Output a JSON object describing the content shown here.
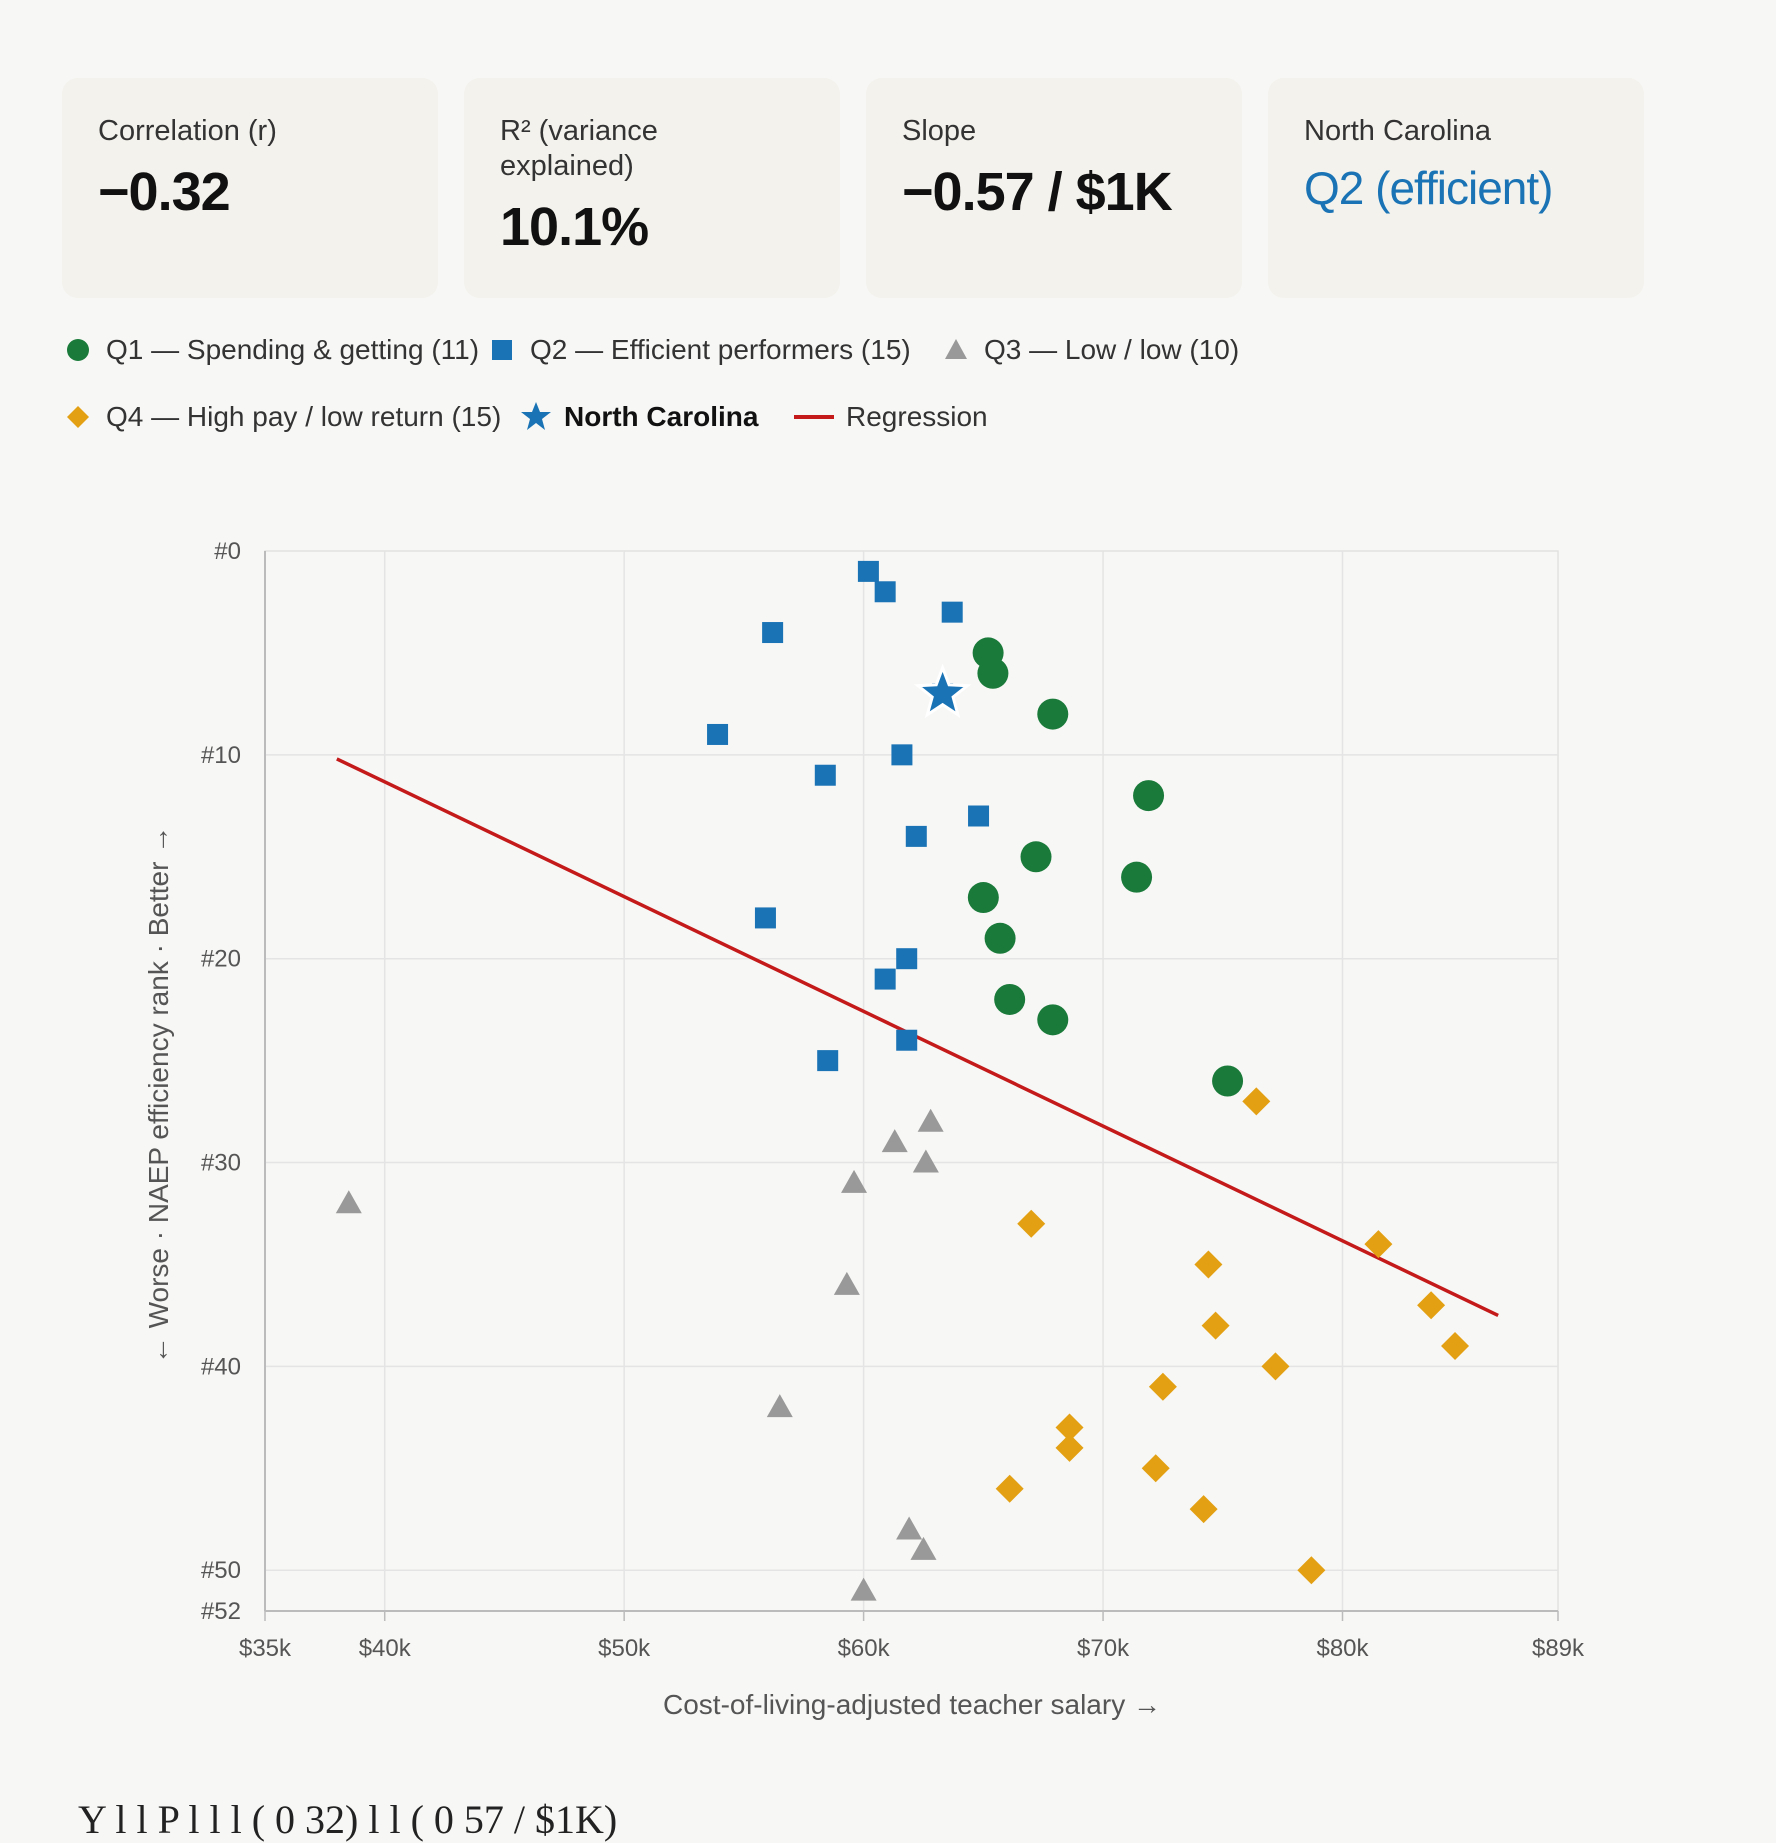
{
  "stats": [
    {
      "label": "Correlation (r)",
      "value": "−0.32"
    },
    {
      "label": "R² (variance explained)",
      "value": "10.1%"
    },
    {
      "label": "Slope",
      "value": "−0.57 / $1K"
    },
    {
      "label": "North Carolina",
      "value": "Q2 (efficient)"
    }
  ],
  "legend": [
    {
      "label": "Q1 — Spending & getting (11)",
      "symbol": "circle-icon",
      "color": "#1a7a3a"
    },
    {
      "label": "Q2 — Efficient performers (15)",
      "symbol": "square-icon",
      "color": "#1a73b5"
    },
    {
      "label": "Q3 — Low / low (10)",
      "symbol": "triangle-icon",
      "color": "#999999"
    },
    {
      "label": "Q4 — High pay / low return (15)",
      "symbol": "diamond-icon",
      "color": "#e3a012"
    },
    {
      "label": "North Carolina",
      "symbol": "star-icon",
      "color": "#1a73b5"
    },
    {
      "label": "Regression",
      "symbol": "line-icon",
      "color": "#c41a1a"
    }
  ],
  "footer_text": "Y  l    l  P    l    l    l     ( 0 32)        l  l    (  0 57 / $1K)",
  "chart_data": {
    "type": "scatter",
    "xlabel": "Cost-of-living-adjusted teacher salary →",
    "ylabel": "← Worse · NAEP efficiency rank · Better →",
    "xlim": [
      35,
      89
    ],
    "ylim": [
      0,
      52
    ],
    "y_inverted": true,
    "x_ticks": [
      {
        "value": 35,
        "label": "$35k"
      },
      {
        "value": 40,
        "label": "$40k"
      },
      {
        "value": 50,
        "label": "$50k"
      },
      {
        "value": 60,
        "label": "$60k"
      },
      {
        "value": 70,
        "label": "$70k"
      },
      {
        "value": 80,
        "label": "$80k"
      },
      {
        "value": 89,
        "label": "$89k"
      }
    ],
    "y_ticks": [
      {
        "value": 0,
        "label": "#0"
      },
      {
        "value": 10,
        "label": "#10"
      },
      {
        "value": 20,
        "label": "#20"
      },
      {
        "value": 30,
        "label": "#30"
      },
      {
        "value": 40,
        "label": "#40"
      },
      {
        "value": 50,
        "label": "#50"
      },
      {
        "value": 52,
        "label": "#52"
      }
    ],
    "grid": true,
    "series": [
      {
        "name": "Q1 — Spending & getting (11)",
        "marker": "circle",
        "color": "#1a7a3a",
        "points": [
          [
            65.2,
            5
          ],
          [
            65.4,
            6
          ],
          [
            67.9,
            8
          ],
          [
            71.9,
            12
          ],
          [
            67.2,
            15
          ],
          [
            71.4,
            16
          ],
          [
            65.0,
            17
          ],
          [
            65.7,
            19
          ],
          [
            66.1,
            22
          ],
          [
            67.9,
            23
          ],
          [
            75.2,
            26
          ]
        ]
      },
      {
        "name": "Q2 — Efficient performers (15)",
        "marker": "square",
        "color": "#1a73b5",
        "points": [
          [
            60.2,
            1
          ],
          [
            60.9,
            2
          ],
          [
            63.7,
            3
          ],
          [
            56.2,
            4
          ],
          [
            53.9,
            9
          ],
          [
            61.6,
            10
          ],
          [
            58.4,
            11
          ],
          [
            64.8,
            13
          ],
          [
            62.2,
            14
          ],
          [
            55.9,
            18
          ],
          [
            61.8,
            20
          ],
          [
            60.9,
            21
          ],
          [
            61.8,
            24
          ],
          [
            58.5,
            25
          ],
          [
            63.3,
            7
          ]
        ]
      },
      {
        "name": "Q3 — Low / low (10)",
        "marker": "triangle",
        "color": "#999999",
        "points": [
          [
            62.8,
            28
          ],
          [
            61.3,
            29
          ],
          [
            62.6,
            30
          ],
          [
            59.6,
            31
          ],
          [
            38.5,
            32
          ],
          [
            59.3,
            36
          ],
          [
            56.5,
            42
          ],
          [
            61.9,
            48
          ],
          [
            62.5,
            49
          ],
          [
            60.0,
            51
          ]
        ]
      },
      {
        "name": "Q4 — High pay / low return (15)",
        "marker": "diamond",
        "color": "#e3a012",
        "points": [
          [
            76.4,
            27
          ],
          [
            67.0,
            33
          ],
          [
            81.5,
            34
          ],
          [
            74.4,
            35
          ],
          [
            83.7,
            37
          ],
          [
            74.7,
            38
          ],
          [
            84.7,
            39
          ],
          [
            77.2,
            40
          ],
          [
            72.5,
            41
          ],
          [
            68.6,
            43
          ],
          [
            68.6,
            44
          ],
          [
            72.2,
            45
          ],
          [
            66.1,
            46
          ],
          [
            74.2,
            47
          ],
          [
            78.7,
            50
          ]
        ]
      }
    ],
    "highlight": {
      "name": "North Carolina",
      "marker": "star",
      "color": "#1a73b5",
      "x": 63.3,
      "y": 7
    },
    "regression": {
      "name": "Regression",
      "color": "#c41a1a",
      "x": [
        38.0,
        86.5
      ],
      "y": [
        10.2,
        37.5
      ]
    }
  }
}
